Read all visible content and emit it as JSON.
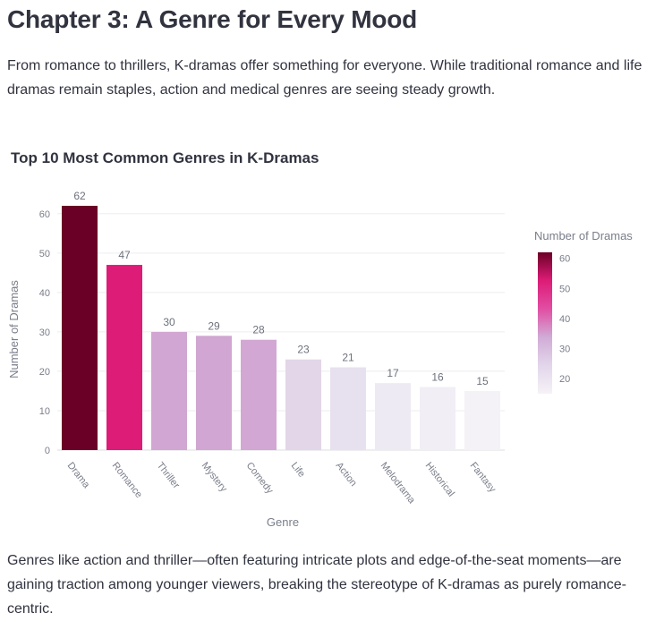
{
  "page": {
    "heading": "Chapter 3: A Genre for Every Mood",
    "intro": "From romance to thrillers, K-dramas offer something for everyone. While traditional romance and life dramas remain staples, action and medical genres are seeing steady growth.",
    "outro": "Genres like action and thriller—often featuring intricate plots and edge-of-the-seat moments—are gaining traction among younger viewers, breaking the stereotype of K-dramas as purely romance-centric."
  },
  "chart_data": {
    "type": "bar",
    "title": "Top 10 Most Common Genres in K-Dramas",
    "xlabel": "Genre",
    "ylabel": "Number of Dramas",
    "categories": [
      "Drama",
      "Romance",
      "Thriller",
      "Mystery",
      "Comedy",
      "Life",
      "Action",
      "Melodrama",
      "Historical",
      "Fantasy"
    ],
    "values": [
      62,
      47,
      30,
      29,
      28,
      23,
      21,
      17,
      16,
      15
    ],
    "ylim": [
      0,
      62
    ],
    "yticks": [
      0,
      10,
      20,
      30,
      40,
      50,
      60
    ],
    "grid": true,
    "legend_placement": "right",
    "colorbar": {
      "title": "Number of Dramas",
      "ticks": [
        20,
        30,
        40,
        50,
        60
      ],
      "range": [
        15,
        62
      ],
      "colors": [
        "#f6f2f7",
        "#e2d6eb",
        "#d1abd6",
        "#e14ea3",
        "#dd1c77",
        "#6b0026"
      ]
    },
    "bar_colors": [
      "#6b0026",
      "#dd1c77",
      "#d1a6d2",
      "#d1a6d2",
      "#d2a7d3",
      "#e2d6e8",
      "#e7e1ef",
      "#eeeaf3",
      "#f1eef6",
      "#f4f1f7"
    ]
  }
}
